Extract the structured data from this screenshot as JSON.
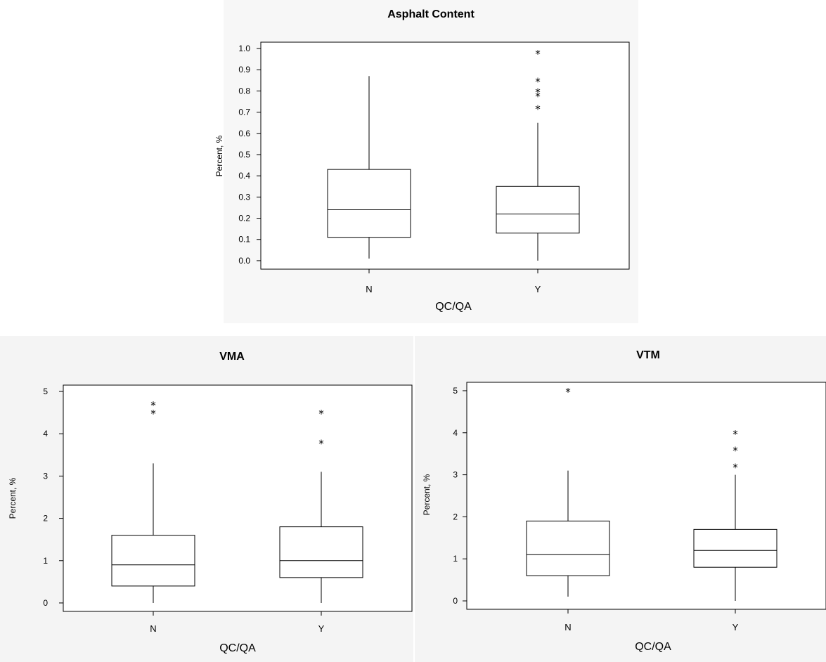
{
  "chart_data": [
    {
      "type": "boxplot",
      "title": "Asphalt Content",
      "xlabel": "QC/QA",
      "ylabel": "Percent, %",
      "categories": [
        "N",
        "Y"
      ],
      "yticks": [
        "0.0",
        "0.1",
        "0.2",
        "0.3",
        "0.4",
        "0.5",
        "0.6",
        "0.7",
        "0.8",
        "0.9",
        "1.0"
      ],
      "ylim": [
        -0.04,
        1.03
      ],
      "boxes": [
        {
          "category": "N",
          "whisker_low": 0.01,
          "q1": 0.11,
          "median": 0.24,
          "q3": 0.43,
          "whisker_high": 0.87,
          "outliers": []
        },
        {
          "category": "Y",
          "whisker_low": 0.0,
          "q1": 0.13,
          "median": 0.22,
          "q3": 0.35,
          "whisker_high": 0.65,
          "outliers": [
            0.72,
            0.78,
            0.8,
            0.85,
            0.98
          ]
        }
      ]
    },
    {
      "type": "boxplot",
      "title": "VMA",
      "xlabel": "QC/QA",
      "ylabel": "Percent, %",
      "categories": [
        "N",
        "Y"
      ],
      "yticks": [
        "0",
        "1",
        "2",
        "3",
        "4",
        "5"
      ],
      "ylim": [
        -0.2,
        5.15
      ],
      "boxes": [
        {
          "category": "N",
          "whisker_low": 0.0,
          "q1": 0.4,
          "median": 0.9,
          "q3": 1.6,
          "whisker_high": 3.3,
          "outliers": [
            4.5,
            4.7
          ]
        },
        {
          "category": "Y",
          "whisker_low": 0.0,
          "q1": 0.6,
          "median": 1.0,
          "q3": 1.8,
          "whisker_high": 3.1,
          "outliers": [
            3.8,
            4.5
          ]
        }
      ]
    },
    {
      "type": "boxplot",
      "title": "VTM",
      "xlabel": "QC/QA",
      "ylabel": "Percent, %",
      "categories": [
        "N",
        "Y"
      ],
      "yticks": [
        "0",
        "1",
        "2",
        "3",
        "4",
        "5"
      ],
      "ylim": [
        -0.2,
        5.2
      ],
      "boxes": [
        {
          "category": "N",
          "whisker_low": 0.1,
          "q1": 0.6,
          "median": 1.1,
          "q3": 1.9,
          "whisker_high": 3.1,
          "outliers": [
            5.0
          ]
        },
        {
          "category": "Y",
          "whisker_low": 0.0,
          "q1": 0.8,
          "median": 1.2,
          "q3": 1.7,
          "whisker_high": 3.0,
          "outliers": [
            3.2,
            3.6,
            4.0
          ]
        }
      ]
    }
  ],
  "colors": {
    "line": "#000000",
    "background": "#ffffff",
    "panel": "#f5f5f5"
  }
}
